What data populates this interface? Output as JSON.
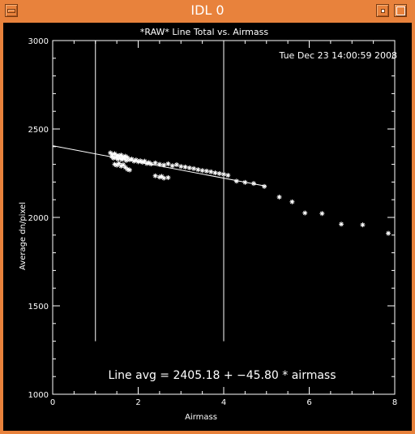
{
  "window": {
    "title": "IDL 0"
  },
  "chart_data": {
    "type": "scatter",
    "title": "*RAW* Line Total vs. Airmass",
    "timestamp": "Tue Dec 23 14:00:59 2008",
    "xlabel": "Airmass",
    "ylabel": "Average dn/pixel",
    "xlim": [
      0,
      8
    ],
    "ylim": [
      1000,
      3000
    ],
    "xticks": [
      0,
      2,
      4,
      6,
      8
    ],
    "yticks": [
      1000,
      1500,
      2000,
      2500,
      3000
    ],
    "fit": {
      "intercept": 2405.18,
      "slope": -45.8,
      "x_range": [
        0,
        5
      ]
    },
    "fit_label": "Line avg = 2405.18 + −45.80 * airmass",
    "vlines": [
      1,
      4
    ],
    "marker": "asterisk",
    "points": [
      [
        1.35,
        2365
      ],
      [
        1.38,
        2345
      ],
      [
        1.4,
        2355
      ],
      [
        1.42,
        2335
      ],
      [
        1.45,
        2360
      ],
      [
        1.48,
        2340
      ],
      [
        1.5,
        2350
      ],
      [
        1.52,
        2330
      ],
      [
        1.55,
        2348
      ],
      [
        1.58,
        2336
      ],
      [
        1.6,
        2352
      ],
      [
        1.62,
        2328
      ],
      [
        1.65,
        2342
      ],
      [
        1.68,
        2334
      ],
      [
        1.7,
        2346
      ],
      [
        1.72,
        2322
      ],
      [
        1.75,
        2338
      ],
      [
        1.8,
        2326
      ],
      [
        1.85,
        2330
      ],
      [
        1.9,
        2318
      ],
      [
        1.95,
        2325
      ],
      [
        2.0,
        2315
      ],
      [
        2.05,
        2320
      ],
      [
        2.1,
        2312
      ],
      [
        2.15,
        2318
      ],
      [
        2.2,
        2305
      ],
      [
        2.25,
        2310
      ],
      [
        2.3,
        2302
      ],
      [
        2.4,
        2308
      ],
      [
        2.5,
        2300
      ],
      [
        2.6,
        2296
      ],
      [
        2.7,
        2303
      ],
      [
        2.8,
        2292
      ],
      [
        2.9,
        2298
      ],
      [
        3.0,
        2288
      ],
      [
        3.1,
        2285
      ],
      [
        3.2,
        2280
      ],
      [
        3.3,
        2276
      ],
      [
        3.4,
        2270
      ],
      [
        3.5,
        2265
      ],
      [
        3.6,
        2262
      ],
      [
        3.7,
        2258
      ],
      [
        3.8,
        2252
      ],
      [
        3.9,
        2248
      ],
      [
        4.0,
        2244
      ],
      [
        4.1,
        2238
      ],
      [
        1.45,
        2300
      ],
      [
        1.5,
        2295
      ],
      [
        1.55,
        2305
      ],
      [
        1.6,
        2290
      ],
      [
        1.65,
        2298
      ],
      [
        1.7,
        2283
      ],
      [
        1.75,
        2272
      ],
      [
        1.8,
        2268
      ],
      [
        2.4,
        2235
      ],
      [
        2.5,
        2228
      ],
      [
        2.55,
        2232
      ],
      [
        2.6,
        2222
      ],
      [
        2.7,
        2225
      ],
      [
        4.3,
        2205
      ],
      [
        4.5,
        2198
      ],
      [
        4.7,
        2192
      ],
      [
        4.95,
        2175
      ],
      [
        5.3,
        2115
      ],
      [
        5.6,
        2088
      ],
      [
        5.9,
        2025
      ],
      [
        6.3,
        2022
      ],
      [
        6.75,
        1962
      ],
      [
        7.25,
        1958
      ],
      [
        7.85,
        1910
      ]
    ]
  }
}
